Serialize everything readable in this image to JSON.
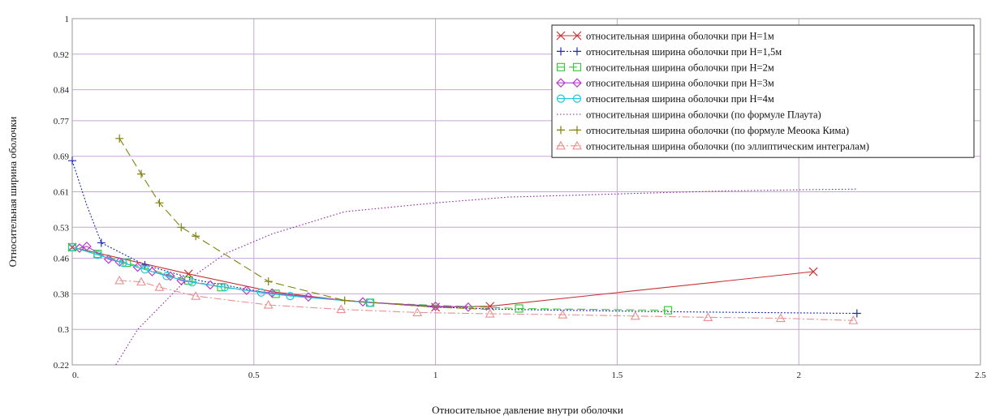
{
  "chart_data": {
    "type": "line",
    "title": "",
    "xlabel": "Относительное давление внутри оболочки",
    "ylabel": "Относительная ширина оболочки",
    "xlim": [
      0,
      2.5
    ],
    "ylim": [
      0.22,
      1
    ],
    "x_ticks": [
      {
        "value": 0,
        "label": "0."
      },
      {
        "value": 0.5,
        "label": "0.5"
      },
      {
        "value": 1,
        "label": "1"
      },
      {
        "value": 1.5,
        "label": "1.5"
      },
      {
        "value": 2,
        "label": "2"
      },
      {
        "value": 2.5,
        "label": "2.5"
      }
    ],
    "y_ticks": [
      {
        "value": 0.22,
        "label": "0.22"
      },
      {
        "value": 0.3,
        "label": "0.3"
      },
      {
        "value": 0.38,
        "label": "0.38"
      },
      {
        "value": 0.46,
        "label": "0.46"
      },
      {
        "value": 0.53,
        "label": "0.53"
      },
      {
        "value": 0.61,
        "label": "0.61"
      },
      {
        "value": 0.69,
        "label": "0.69"
      },
      {
        "value": 0.77,
        "label": "0.77"
      },
      {
        "value": 0.84,
        "label": "0.84"
      },
      {
        "value": 0.92,
        "label": "0.92"
      },
      {
        "value": 1,
        "label": "1"
      }
    ],
    "grid": true,
    "legend_position": "top-right",
    "series": [
      {
        "name": "относительная ширина оболочки при H=1м",
        "color": "#c83232",
        "dash": "",
        "marker": "x",
        "points": [
          [
            0,
            0.485
          ],
          [
            0.32,
            0.425
          ],
          [
            0.55,
            0.385
          ],
          [
            0.75,
            0.365
          ],
          [
            1.0,
            0.35
          ],
          [
            1.15,
            0.352
          ],
          [
            2.04,
            0.43
          ]
        ],
        "marked": [
          0,
          1,
          4,
          5,
          6
        ]
      },
      {
        "name": "относительная ширина оболочки при H=1,5м",
        "color": "#1f2fa8",
        "dash": "2,2",
        "marker": "plus",
        "points": [
          [
            0,
            0.68
          ],
          [
            0.04,
            0.58
          ],
          [
            0.08,
            0.495
          ],
          [
            0.2,
            0.445
          ],
          [
            0.35,
            0.41
          ],
          [
            0.55,
            0.38
          ],
          [
            0.75,
            0.365
          ],
          [
            1.0,
            0.35
          ],
          [
            1.2,
            0.345
          ],
          [
            1.6,
            0.34
          ],
          [
            2.0,
            0.337
          ],
          [
            2.16,
            0.336
          ]
        ],
        "marked": [
          0,
          2,
          3,
          11
        ]
      },
      {
        "name": "относительная ширина оболочки при H=2м",
        "color": "#3cc83c",
        "dash": "10,5",
        "marker": "square",
        "points": [
          [
            0,
            0.485
          ],
          [
            0.07,
            0.47
          ],
          [
            0.15,
            0.45
          ],
          [
            0.32,
            0.41
          ],
          [
            0.41,
            0.395
          ],
          [
            0.56,
            0.38
          ],
          [
            0.82,
            0.36
          ],
          [
            1.23,
            0.347
          ],
          [
            1.64,
            0.343
          ]
        ],
        "marked": [
          0,
          1,
          2,
          3,
          4,
          5,
          6,
          7,
          8
        ]
      },
      {
        "name": "относительная ширина оболочки при H=3м",
        "color": "#b43cc8",
        "dash": "",
        "marker": "diamond",
        "points": [
          [
            0.02,
            0.483
          ],
          [
            0.04,
            0.487
          ],
          [
            0.1,
            0.458
          ],
          [
            0.13,
            0.452
          ],
          [
            0.18,
            0.44
          ],
          [
            0.22,
            0.43
          ],
          [
            0.27,
            0.42
          ],
          [
            0.3,
            0.41
          ],
          [
            0.38,
            0.4
          ],
          [
            0.48,
            0.388
          ],
          [
            0.55,
            0.382
          ],
          [
            0.65,
            0.373
          ],
          [
            0.8,
            0.362
          ],
          [
            1.0,
            0.352
          ],
          [
            1.09,
            0.35
          ]
        ],
        "marked": [
          0,
          1,
          2,
          3,
          4,
          5,
          6,
          7,
          8,
          9,
          10,
          11,
          12,
          13,
          14
        ]
      },
      {
        "name": "относительная ширина оболочки при H=4м",
        "color": "#1ec8dc",
        "dash": "",
        "marker": "circle",
        "points": [
          [
            0,
            0.485
          ],
          [
            0.07,
            0.468
          ],
          [
            0.14,
            0.45
          ],
          [
            0.2,
            0.435
          ],
          [
            0.26,
            0.42
          ],
          [
            0.33,
            0.406
          ],
          [
            0.42,
            0.395
          ],
          [
            0.52,
            0.383
          ],
          [
            0.6,
            0.375
          ],
          [
            0.82,
            0.36
          ]
        ],
        "marked": [
          0,
          1,
          2,
          3,
          4,
          5,
          6,
          7,
          8,
          9
        ]
      },
      {
        "name": "относительная ширина оболочки (по формуле Плаута)",
        "color": "#8c1ea0",
        "dash": "1.5,2.5",
        "marker": "none",
        "points": [
          [
            0.12,
            0.22
          ],
          [
            0.18,
            0.3
          ],
          [
            0.3,
            0.4
          ],
          [
            0.42,
            0.47
          ],
          [
            0.55,
            0.515
          ],
          [
            0.75,
            0.565
          ],
          [
            1.0,
            0.585
          ],
          [
            1.2,
            0.598
          ],
          [
            1.5,
            0.605
          ],
          [
            1.8,
            0.612
          ],
          [
            2.05,
            0.615
          ],
          [
            2.16,
            0.616
          ]
        ],
        "marked": []
      },
      {
        "name": "относительная ширина оболочки (по формуле Меоока Кима)",
        "color": "#808010",
        "dash": "10,5",
        "marker": "plus",
        "points": [
          [
            0.13,
            0.73
          ],
          [
            0.19,
            0.65
          ],
          [
            0.24,
            0.585
          ],
          [
            0.3,
            0.53
          ],
          [
            0.34,
            0.51
          ],
          [
            0.54,
            0.408
          ],
          [
            0.75,
            0.365
          ],
          [
            1.0,
            0.35
          ],
          [
            1.15,
            0.345
          ]
        ],
        "marked": [
          0,
          1,
          2,
          3,
          4,
          5,
          6
        ]
      },
      {
        "name": "относительная ширина оболочки (по эллиптическим интегралам)",
        "color": "#e89090",
        "dash": "9,3,2,3",
        "marker": "triangle",
        "points": [
          [
            0.13,
            0.41
          ],
          [
            0.19,
            0.407
          ],
          [
            0.24,
            0.395
          ],
          [
            0.34,
            0.375
          ],
          [
            0.54,
            0.355
          ],
          [
            0.74,
            0.345
          ],
          [
            0.95,
            0.338
          ],
          [
            1.15,
            0.335
          ],
          [
            1.35,
            0.333
          ],
          [
            1.55,
            0.33
          ],
          [
            1.75,
            0.327
          ],
          [
            1.95,
            0.325
          ],
          [
            2.15,
            0.32
          ]
        ],
        "marked": [
          0,
          1,
          2,
          3,
          4,
          5,
          6,
          7,
          8,
          9,
          10,
          11,
          12
        ]
      }
    ]
  }
}
